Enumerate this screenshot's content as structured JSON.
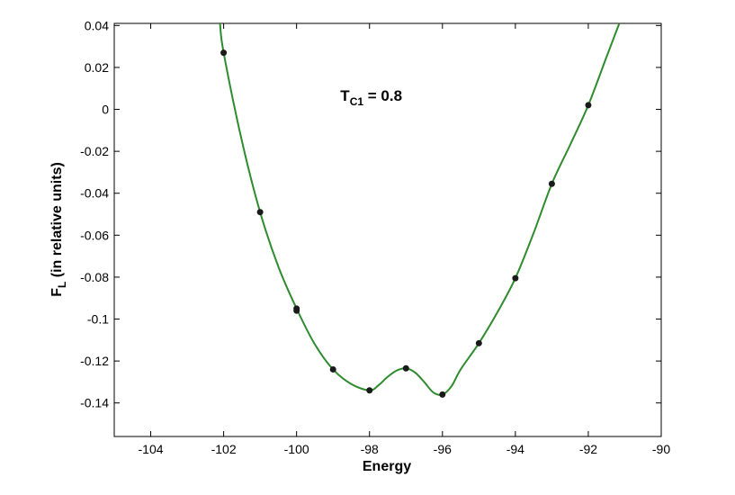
{
  "chart_data": {
    "type": "line",
    "title": "",
    "xlabel": "Energy",
    "ylabel": {
      "main": "F",
      "sub": "L",
      "suffix": " (in relative units)"
    },
    "xlim": [
      -105,
      -90
    ],
    "ylim": [
      -0.156,
      0.041
    ],
    "x_ticks": [
      -104,
      -102,
      -100,
      -98,
      -96,
      -94,
      -92,
      -90
    ],
    "x_tick_labels": [
      "-104",
      "-102",
      "-100",
      "-98",
      "-96",
      "-94",
      "-92",
      "-90"
    ],
    "y_ticks": [
      0.04,
      0.02,
      0,
      -0.02,
      -0.04,
      -0.06,
      -0.08,
      -0.1,
      -0.12,
      -0.14
    ],
    "y_tick_labels": [
      "0.04",
      "0.02",
      "0",
      "-0.02",
      "-0.04",
      "-0.06",
      "-0.08",
      "-0.1",
      "-0.12",
      "-0.14"
    ],
    "grid": false,
    "annotation": {
      "main": "T",
      "sub": "C1",
      "suffix": " = 0.8",
      "x": -98.8,
      "y": 0.004
    },
    "curve_color": "#2e8b2e",
    "marker_color": "#1a1a1a",
    "points": {
      "x": [
        -102,
        -101,
        -100,
        -100,
        -99,
        -98,
        -97,
        -96,
        -95,
        -94,
        -93,
        -92
      ],
      "y": [
        0.027,
        -0.049,
        -0.095,
        -0.096,
        -0.124,
        -0.134,
        -0.1235,
        -0.136,
        -0.1115,
        -0.0805,
        -0.0355,
        0.002
      ]
    },
    "curve": {
      "x": [
        -102.1,
        -102,
        -101.5,
        -101,
        -100.5,
        -100,
        -99.5,
        -99,
        -98.5,
        -98,
        -97.75,
        -97.5,
        -97.25,
        -97,
        -96.75,
        -96.5,
        -96.25,
        -96,
        -95.75,
        -95.5,
        -95,
        -94.5,
        -94,
        -93.5,
        -93,
        -92.5,
        -92,
        -91.5,
        -91.15
      ],
      "y": [
        0.041,
        0.027,
        -0.015,
        -0.049,
        -0.075,
        -0.095,
        -0.112,
        -0.124,
        -0.131,
        -0.134,
        -0.1315,
        -0.1275,
        -0.1245,
        -0.1235,
        -0.1255,
        -0.13,
        -0.135,
        -0.136,
        -0.132,
        -0.124,
        -0.1115,
        -0.097,
        -0.0805,
        -0.059,
        -0.0355,
        -0.017,
        0.002,
        0.025,
        0.041
      ]
    }
  }
}
